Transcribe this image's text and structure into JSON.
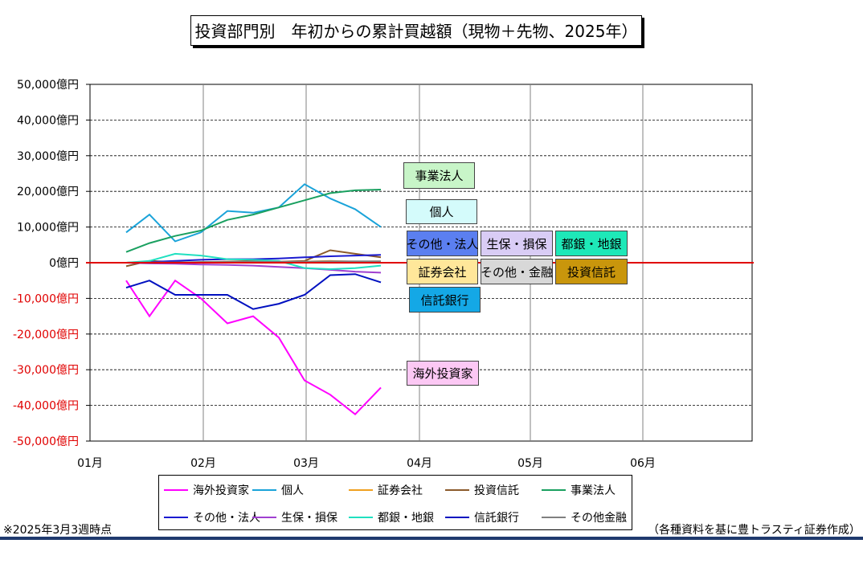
{
  "title": "投資部門別　年初からの累計買越額（現物＋先物、2025年）",
  "footnote_left": "※2025年3月3週時点",
  "footnote_right": "（各種資料を基に豊トラスティ証券作成）",
  "chart_data": {
    "type": "line",
    "y_ticks": [
      50000,
      40000,
      30000,
      20000,
      10000,
      0,
      -10000,
      -20000,
      -30000,
      -40000,
      -50000
    ],
    "y_tick_labels": [
      "50,000億円",
      "40,000億円",
      "30,000億円",
      "20,000億円",
      "10,000億円",
      "0億円",
      "-10,000億円",
      "-20,000億円",
      "-30,000億円",
      "-40,000億円",
      "-50,000億円"
    ],
    "ylim": [
      -50000,
      50000
    ],
    "x_tick_labels": [
      "01月",
      "02月",
      "03月",
      "04月",
      "05月",
      "06月"
    ],
    "zero_line_color": "#e00000",
    "x_weeks": [
      "1/10",
      "1/17",
      "1/24",
      "1/31",
      "2/7",
      "2/14",
      "2/21",
      "2/28",
      "3/7",
      "3/14",
      "3/21"
    ],
    "series": [
      {
        "name": "海外投資家",
        "color": "#ff00ff",
        "values": [
          -5000,
          -15000,
          -5000,
          -10000,
          -17000,
          -15000,
          -21000,
          -33000,
          -37000,
          -42500,
          -35000
        ]
      },
      {
        "name": "個人",
        "color": "#1aa3d9",
        "values": [
          8500,
          13500,
          6000,
          8500,
          14500,
          14000,
          15500,
          22000,
          18000,
          15000,
          10000
        ]
      },
      {
        "name": "証券会社",
        "color": "#f0a020",
        "values": [
          0,
          200,
          -200,
          200,
          300,
          200,
          100,
          300,
          500,
          300,
          400
        ]
      },
      {
        "name": "投資信託",
        "color": "#8b5a2b",
        "values": [
          -1000,
          500,
          200,
          0,
          300,
          500,
          300,
          500,
          3500,
          2500,
          1500
        ]
      },
      {
        "name": "事業法人",
        "color": "#1aa060",
        "values": [
          3000,
          5500,
          7500,
          9000,
          12000,
          13500,
          15500,
          17500,
          19500,
          20300,
          20500
        ]
      },
      {
        "name": "その他・法人",
        "color": "#1a1ad0",
        "values": [
          0,
          200,
          500,
          800,
          1000,
          1000,
          1200,
          1500,
          1800,
          2000,
          2200
        ]
      },
      {
        "name": "生保・損保",
        "color": "#a040d0",
        "values": [
          0,
          -200,
          -300,
          -500,
          -600,
          -800,
          -1200,
          -1500,
          -2000,
          -2500,
          -2800
        ]
      },
      {
        "name": "都銀・地銀",
        "color": "#20e0c0",
        "values": [
          0,
          500,
          2500,
          2000,
          1000,
          800,
          500,
          -1500,
          -1800,
          -1500,
          -800
        ]
      },
      {
        "name": "信託銀行",
        "color": "#0010c0",
        "values": [
          -7000,
          -5000,
          -9000,
          -9000,
          -9000,
          -13000,
          -11500,
          -9000,
          -3500,
          -3200,
          -5500
        ]
      },
      {
        "name": "その他金融",
        "color": "#808080",
        "values": [
          0,
          100,
          100,
          200,
          200,
          300,
          300,
          300,
          400,
          400,
          400
        ]
      }
    ]
  },
  "badges": [
    {
      "label": "事業法人",
      "bg": "#c8f5c8"
    },
    {
      "label": "個人",
      "bg": "#d4fbfb"
    },
    {
      "label": "その他・法人",
      "bg": "#5b7ff0"
    },
    {
      "label": "生保・損保",
      "bg": "#d9ccf5"
    },
    {
      "label": "都銀・地銀",
      "bg": "#1ee8b8"
    },
    {
      "label": "証券会社",
      "bg": "#ffe79a"
    },
    {
      "label": "その他・金融",
      "bg": "#d8d8d8"
    },
    {
      "label": "投資信託",
      "bg": "#c9960c"
    },
    {
      "label": "信託銀行",
      "bg": "#14a8e6"
    },
    {
      "label": "海外投資家",
      "bg": "#fcc8f4"
    }
  ],
  "legend": [
    {
      "label": "海外投資家",
      "color": "#ff00ff"
    },
    {
      "label": "個人",
      "color": "#1aa3d9"
    },
    {
      "label": "証券会社",
      "color": "#f0a020"
    },
    {
      "label": "投資信託",
      "color": "#8b5a2b"
    },
    {
      "label": "事業法人",
      "color": "#1aa060"
    },
    {
      "label": "その他・法人",
      "color": "#1a1ad0"
    },
    {
      "label": "生保・損保",
      "color": "#a040d0"
    },
    {
      "label": "都銀・地銀",
      "color": "#20e0c0"
    },
    {
      "label": "信託銀行",
      "color": "#0010c0"
    },
    {
      "label": "その他金融",
      "color": "#808080"
    }
  ]
}
